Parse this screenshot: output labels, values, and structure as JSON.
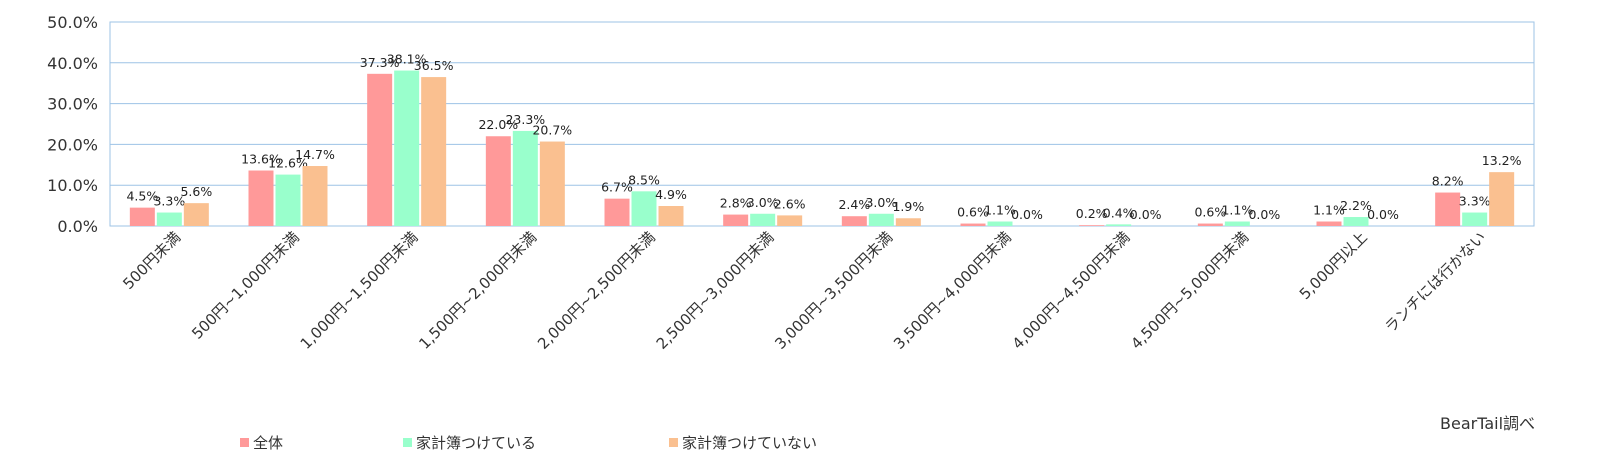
{
  "chart_data": {
    "type": "bar",
    "categories": [
      "500円未満",
      "500円~1,000円未満",
      "1,000円~1,500円未満",
      "1,500円~2,000円未満",
      "2,000円~2,500円未満",
      "2,500円~3,000円未満",
      "3,000円~3,500円未満",
      "3,500円~4,000円未満",
      "4,000円~4,500円未満",
      "4,500円~5,000円未満",
      "5,000円以上",
      "ランチには行かない"
    ],
    "series": [
      {
        "name": "全体",
        "color": "#ff9999",
        "values": [
          4.5,
          13.6,
          37.3,
          22.0,
          6.7,
          2.8,
          2.4,
          0.6,
          0.2,
          0.6,
          1.1,
          8.2
        ],
        "labels": [
          "4.5%",
          "13.6%",
          "37.3%",
          "22.0%",
          "6.7%",
          "2.8%",
          "2.4%",
          "0.6%",
          "0.2%",
          "0.6%",
          "1.1%",
          "8.2%"
        ]
      },
      {
        "name": "家計簿つけている",
        "color": "#99ffcc",
        "values": [
          3.3,
          12.6,
          38.1,
          23.3,
          8.5,
          3.0,
          3.0,
          1.1,
          0.4,
          1.1,
          2.2,
          3.3
        ],
        "labels": [
          "3.3%",
          "12.6%",
          "38.1%",
          "23.3%",
          "8.5%",
          "3.0%",
          "3.0%",
          "1.1%",
          "0.4%",
          "1.1%",
          "2.2%",
          "3.3%"
        ]
      },
      {
        "name": "家計簿つけていない",
        "color": "#fac090",
        "values": [
          5.6,
          14.7,
          36.5,
          20.7,
          4.9,
          2.6,
          1.9,
          0.0,
          0.0,
          0.0,
          0.0,
          13.2
        ],
        "labels": [
          "5.6%",
          "14.7%",
          "36.5%",
          "20.7%",
          "4.9%",
          "2.6%",
          "1.9%",
          "0.0%",
          "0.0%",
          "0.0%",
          "0.0%",
          "13.2%"
        ]
      }
    ],
    "ylim": [
      0,
      50
    ],
    "yticks": [
      "0.0%",
      "10.0%",
      "20.0%",
      "30.0%",
      "40.0%",
      "50.0%"
    ],
    "grid": true,
    "legend_position": "bottom-left"
  },
  "source": "BearTail調べ"
}
